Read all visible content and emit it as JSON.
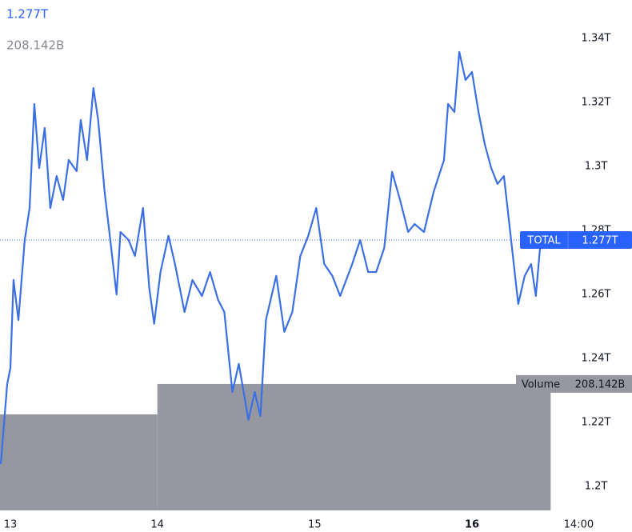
{
  "chart_data": {
    "type": "line",
    "legend_price": "1.277T",
    "legend_volume": "208.142B",
    "series": [
      {
        "name": "TOTAL",
        "color": "#3b6fe6",
        "last_label": "1.277T",
        "x": [
          13.005,
          13.046,
          13.066,
          13.086,
          13.117,
          13.157,
          13.188,
          13.218,
          13.249,
          13.284,
          13.32,
          13.36,
          13.401,
          13.437,
          13.487,
          13.513,
          13.553,
          13.594,
          13.624,
          13.665,
          13.695,
          13.741,
          13.766,
          13.817,
          13.858,
          13.909,
          13.949,
          13.98,
          14.02,
          14.071,
          14.112,
          14.173,
          14.223,
          14.284,
          14.335,
          14.386,
          14.426,
          14.477,
          14.518,
          14.579,
          14.619,
          14.655,
          14.69,
          14.756,
          14.807,
          14.858,
          14.909,
          14.959,
          15.01,
          15.061,
          15.112,
          15.162,
          15.239,
          15.289,
          15.34,
          15.391,
          15.442,
          15.492,
          15.543,
          15.594,
          15.635,
          15.695,
          15.756,
          15.822,
          15.848,
          15.888,
          15.919,
          15.959,
          16.0,
          16.041,
          16.081,
          16.122,
          16.162,
          16.203,
          16.254,
          16.294,
          16.335,
          16.376,
          16.406,
          16.437,
          16.467,
          16.487
        ],
        "values": [
          1.207,
          1.232,
          1.237,
          1.2645,
          1.252,
          1.277,
          1.287,
          1.3195,
          1.2995,
          1.312,
          1.287,
          1.297,
          1.2895,
          1.302,
          1.2985,
          1.3145,
          1.302,
          1.3245,
          1.3145,
          1.292,
          1.2795,
          1.26,
          1.2795,
          1.277,
          1.272,
          1.287,
          1.262,
          1.2508,
          1.267,
          1.2783,
          1.2695,
          1.2545,
          1.2645,
          1.2595,
          1.267,
          1.2583,
          1.2545,
          1.2295,
          1.2383,
          1.2208,
          1.2295,
          1.222,
          1.252,
          1.2658,
          1.2483,
          1.2545,
          1.272,
          1.2783,
          1.287,
          1.2695,
          1.2658,
          1.2595,
          1.2695,
          1.277,
          1.267,
          1.267,
          1.2745,
          1.2983,
          1.2895,
          1.2795,
          1.282,
          1.2795,
          1.292,
          1.302,
          1.3195,
          1.317,
          1.3358,
          1.327,
          1.3295,
          1.317,
          1.307,
          1.2995,
          1.2945,
          1.297,
          1.2745,
          1.257,
          1.2658,
          1.2695,
          1.2595,
          1.277,
          1.2795,
          1.277
        ]
      }
    ],
    "volume": {
      "name": "Volume",
      "color": "#9598a1",
      "bins": [
        13,
        14,
        16.5
      ],
      "values": [
        158,
        208.142
      ],
      "value_labels": [
        null,
        "208.142B"
      ],
      "axis": "y2"
    },
    "xlim": [
      13,
      16.6
    ],
    "xticks": [
      13,
      14,
      15,
      16,
      {
        "value": 16.583,
        "label": "14:00"
      }
    ],
    "ylim": [
      1.1925,
      1.352
    ],
    "yticks": [
      {
        "value": 1.2,
        "label": "1.2T"
      },
      {
        "value": 1.22,
        "label": "1.22T"
      },
      {
        "value": 1.24,
        "label": "1.24T"
      },
      {
        "value": 1.26,
        "label": "1.26T"
      },
      {
        "value": 1.28,
        "label": "1.28T"
      },
      {
        "value": 1.3,
        "label": "1.3T"
      },
      {
        "value": 1.32,
        "label": "1.32T"
      },
      {
        "value": 1.34,
        "label": "1.34T"
      }
    ],
    "y2lim": [
      0,
      840
    ],
    "grid": false
  }
}
